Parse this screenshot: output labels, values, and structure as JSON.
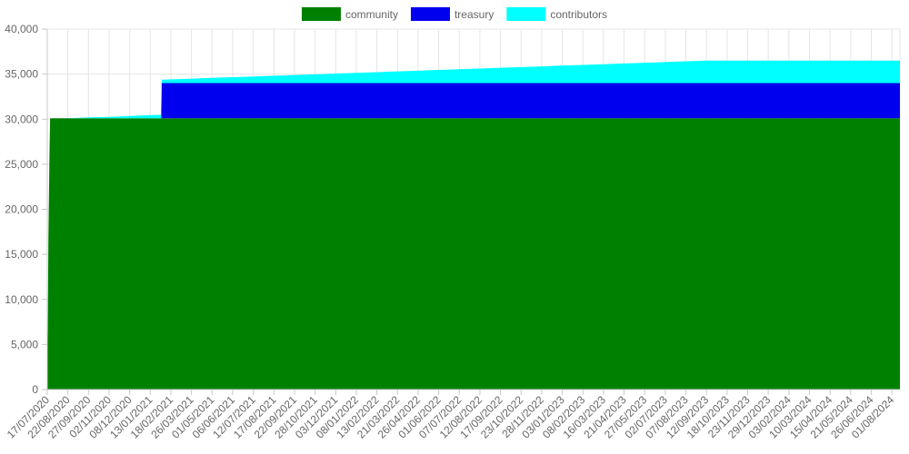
{
  "chart_data": {
    "type": "area",
    "stacked": true,
    "legend_position": "top",
    "grid": true,
    "ylim": [
      0,
      40000
    ],
    "y_ticks": [
      "0",
      "5,000",
      "10,000",
      "15,000",
      "20,000",
      "25,000",
      "30,000",
      "35,000",
      "40,000"
    ],
    "y_tick_values": [
      0,
      5000,
      10000,
      15000,
      20000,
      25000,
      30000,
      35000,
      40000
    ],
    "x_tick_labels": [
      "17/07/2020",
      "22/08/2020",
      "27/09/2020",
      "02/11/2020",
      "08/12/2020",
      "13/01/2021",
      "18/02/2021",
      "26/03/2021",
      "01/05/2021",
      "06/06/2021",
      "12/07/2021",
      "17/08/2021",
      "22/09/2021",
      "28/10/2021",
      "03/12/2021",
      "08/01/2022",
      "13/02/2022",
      "21/03/2022",
      "26/04/2022",
      "01/06/2022",
      "07/07/2022",
      "12/08/2022",
      "17/09/2022",
      "23/10/2022",
      "28/11/2022",
      "03/01/2023",
      "08/02/2023",
      "16/03/2023",
      "21/04/2023",
      "27/05/2023",
      "02/07/2023",
      "07/08/2023",
      "12/09/2023",
      "18/10/2023",
      "23/11/2023",
      "29/12/2023",
      "03/02/2024",
      "10/03/2024",
      "15/04/2024",
      "21/05/2024",
      "26/06/2024",
      "01/08/2024"
    ],
    "x": [
      "17/07/2020",
      "18/07/2020",
      "19/07/2020",
      "21/07/2020",
      "22/07/2020",
      "17/08/2020",
      "22/08/2020",
      "27/09/2020",
      "02/11/2020",
      "08/12/2020",
      "13/01/2021",
      "01/02/2021",
      "02/02/2021",
      "18/02/2021",
      "26/03/2021",
      "01/05/2021",
      "06/06/2021",
      "12/07/2021",
      "17/08/2021",
      "22/09/2021",
      "28/10/2021",
      "03/12/2021",
      "08/01/2022",
      "13/02/2022",
      "21/03/2022",
      "26/04/2022",
      "01/06/2022",
      "07/07/2022",
      "12/08/2022",
      "17/09/2022",
      "23/10/2022",
      "28/11/2022",
      "03/01/2023",
      "08/02/2023",
      "16/03/2023",
      "21/04/2023",
      "27/05/2023",
      "02/07/2023",
      "07/08/2023",
      "12/09/2023",
      "18/10/2023",
      "23/11/2023",
      "29/12/2023",
      "03/02/2024",
      "10/03/2024",
      "15/04/2024",
      "21/05/2024",
      "26/06/2024",
      "01/08/2024",
      "15/08/2024"
    ],
    "series": [
      {
        "name": "community",
        "color": "#008000",
        "values": [
          0,
          6800,
          16800,
          26800,
          30100,
          30100,
          30100,
          30100,
          30100,
          30100,
          30100,
          30100,
          30100,
          30100,
          30100,
          30100,
          30100,
          30100,
          30100,
          30100,
          30100,
          30100,
          30100,
          30100,
          30100,
          30100,
          30100,
          30100,
          30100,
          30100,
          30100,
          30100,
          30100,
          30100,
          30100,
          30100,
          30100,
          30100,
          30100,
          30100,
          30100,
          30100,
          30100,
          30100,
          30100,
          30100,
          30100,
          30100,
          30100,
          30100
        ]
      },
      {
        "name": "treasury",
        "color": "#0000ee",
        "values": [
          0,
          0,
          0,
          0,
          0,
          0,
          0,
          0,
          0,
          0,
          0,
          0,
          3900,
          3900,
          3900,
          3900,
          3900,
          3900,
          3900,
          3900,
          3900,
          3900,
          3900,
          3900,
          3900,
          3900,
          3900,
          3900,
          3900,
          3900,
          3900,
          3900,
          3900,
          3900,
          3900,
          3900,
          3900,
          3900,
          3900,
          3900,
          3900,
          3900,
          3900,
          3900,
          3900,
          3900,
          3900,
          3900,
          3900,
          3900
        ]
      },
      {
        "name": "contributors",
        "color": "#00ffff",
        "values": [
          0,
          0,
          0,
          0,
          0,
          0,
          0,
          100,
          150,
          250,
          350,
          380,
          380,
          420,
          500,
          580,
          660,
          740,
          820,
          900,
          980,
          1060,
          1140,
          1220,
          1300,
          1380,
          1460,
          1540,
          1620,
          1700,
          1780,
          1860,
          1940,
          2020,
          2100,
          2180,
          2260,
          2340,
          2420,
          2500,
          2500,
          2500,
          2500,
          2500,
          2500,
          2500,
          2500,
          2500,
          2500,
          2500
        ]
      }
    ]
  }
}
